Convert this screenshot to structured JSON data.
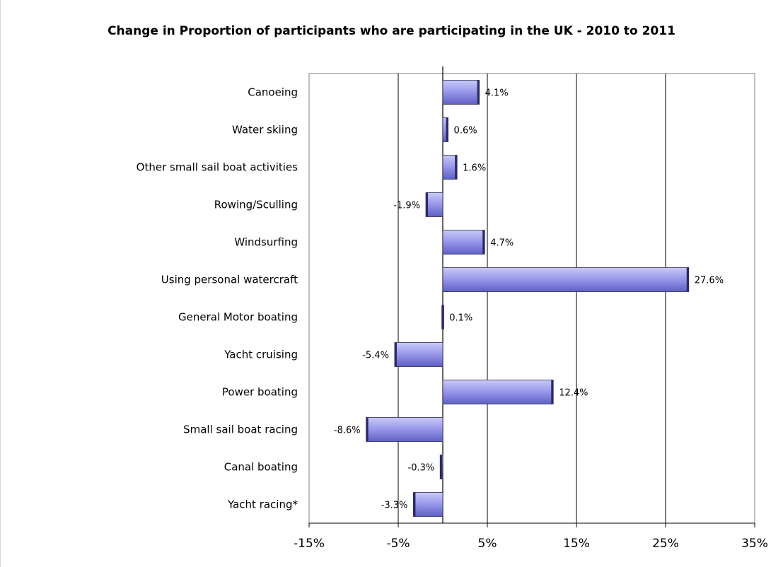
{
  "chart_data": {
    "type": "bar",
    "orientation": "horizontal",
    "title": "Change in Proportion of participants who are participating in the UK - 2010 to 2011",
    "categories": [
      "Canoeing",
      "Water skiing",
      "Other small sail boat activities",
      "Rowing/Sculling",
      "Windsurfing",
      "Using personal watercraft",
      "General Motor boating",
      "Yacht cruising",
      "Power boating",
      "Small sail boat racing",
      "Canal boating",
      "Yacht racing*"
    ],
    "values": [
      4.1,
      0.6,
      1.6,
      -1.9,
      4.7,
      27.6,
      0.1,
      -5.4,
      12.4,
      -8.6,
      -0.3,
      -3.3
    ],
    "value_labels": [
      "4.1%",
      "0.6%",
      "1.6%",
      "-1.9%",
      "4.7%",
      "27.6%",
      "0.1%",
      "-5.4%",
      "12.4%",
      "-8.6%",
      "-0.3%",
      "-3.3%"
    ],
    "xlim": [
      -15,
      35
    ],
    "xticks": [
      -15,
      -5,
      5,
      15,
      25,
      35
    ],
    "xtick_labels": [
      "-15%",
      "-5%",
      "5%",
      "15%",
      "25%",
      "35%"
    ],
    "grid": true,
    "bar_color": "#9999ee"
  }
}
